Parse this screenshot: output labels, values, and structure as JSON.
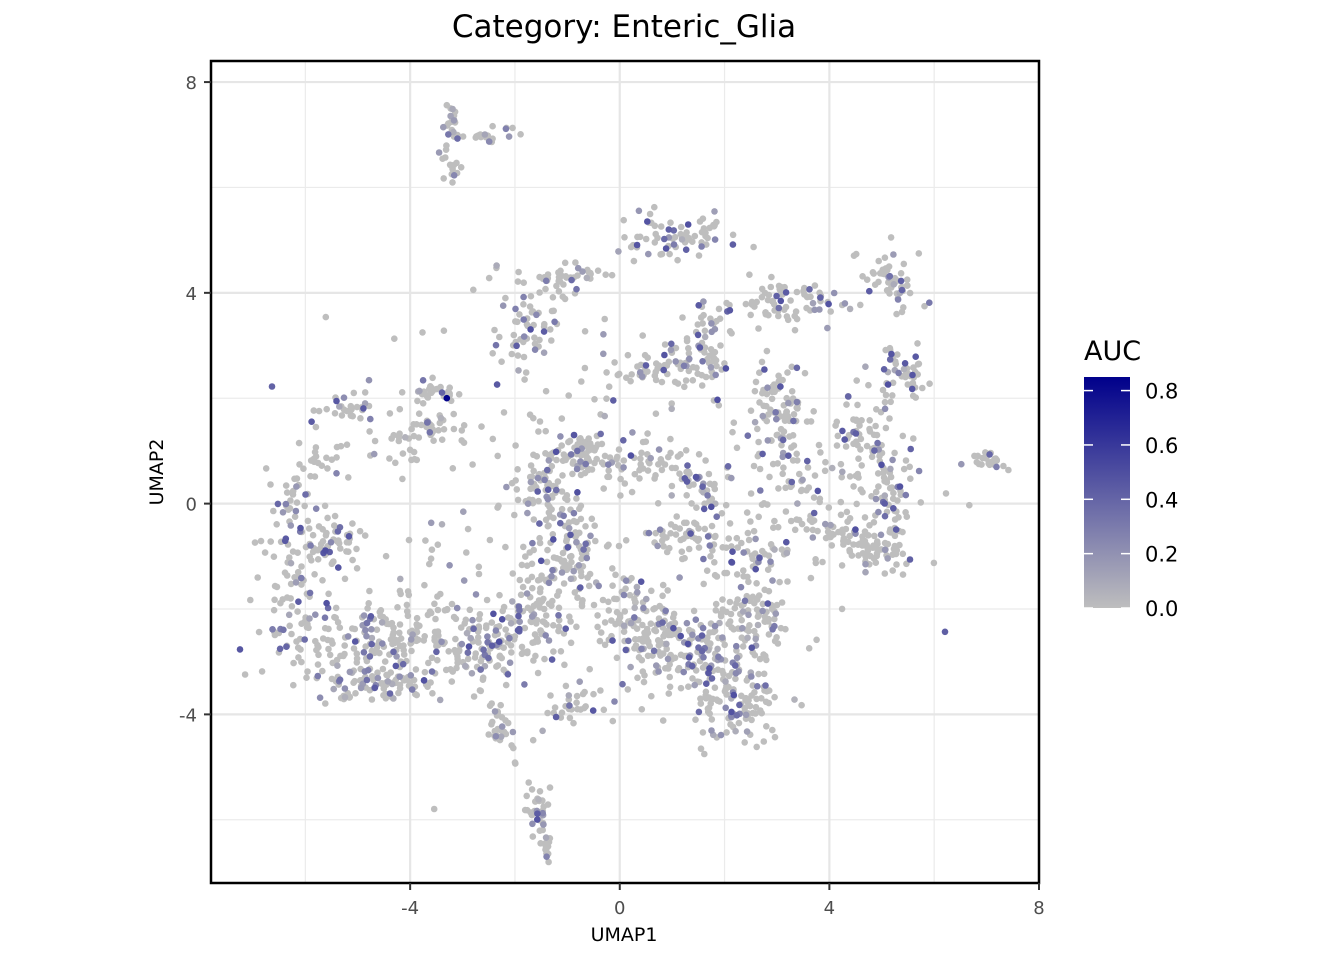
{
  "chart_data": {
    "type": "scatter",
    "title": "Category: Enteric_Glia",
    "xlabel": "UMAP1",
    "ylabel": "UMAP2",
    "xlim": [
      -7.8,
      8
    ],
    "ylim": [
      -7.2,
      8.4
    ],
    "x_ticks": [
      -4,
      0,
      4,
      8
    ],
    "x_tick_labels": [
      "-4",
      "0",
      "4",
      "8"
    ],
    "y_ticks": [
      -4,
      0,
      4,
      8
    ],
    "y_tick_labels": [
      "-4",
      "0",
      "4",
      "8"
    ],
    "grid": true,
    "legend": {
      "title": "AUC",
      "placement": "right",
      "range": [
        0,
        0.85
      ],
      "ticks": [
        0.0,
        0.2,
        0.4,
        0.6,
        0.8
      ],
      "tick_labels": [
        "0.0",
        "0.2",
        "0.4",
        "0.6",
        "0.8"
      ],
      "color_low": "#bebebe",
      "color_high": "#00008b"
    },
    "points_note_excluded": true,
    "clusters": [
      {
        "cx": -3.2,
        "cy": 7.3,
        "rx": 0.15,
        "ry": 0.35,
        "n": 18
      },
      {
        "cx": -2.5,
        "cy": 7.0,
        "rx": 0.5,
        "ry": 0.15,
        "n": 20
      },
      {
        "cx": -3.2,
        "cy": 6.4,
        "rx": 0.2,
        "ry": 0.35,
        "n": 16
      },
      {
        "cx": 1.0,
        "cy": 5.1,
        "rx": 0.9,
        "ry": 0.35,
        "n": 70
      },
      {
        "cx": -1.1,
        "cy": 4.3,
        "rx": 0.6,
        "ry": 0.25,
        "n": 45
      },
      {
        "cx": -1.7,
        "cy": 3.3,
        "rx": 0.5,
        "ry": 0.6,
        "n": 55
      },
      {
        "cx": 0.7,
        "cy": 2.6,
        "rx": 1.0,
        "ry": 0.3,
        "n": 65
      },
      {
        "cx": 1.6,
        "cy": 3.0,
        "rx": 0.35,
        "ry": 0.6,
        "n": 40
      },
      {
        "cx": 3.3,
        "cy": 3.8,
        "rx": 1.1,
        "ry": 0.35,
        "n": 70
      },
      {
        "cx": 5.1,
        "cy": 4.2,
        "rx": 0.5,
        "ry": 0.45,
        "n": 55
      },
      {
        "cx": 5.4,
        "cy": 2.5,
        "rx": 0.4,
        "ry": 0.6,
        "n": 50
      },
      {
        "cx": 3.0,
        "cy": 1.7,
        "rx": 0.5,
        "ry": 0.7,
        "n": 80
      },
      {
        "cx": 4.6,
        "cy": 1.2,
        "rx": 0.5,
        "ry": 0.8,
        "n": 60
      },
      {
        "cx": 5.2,
        "cy": 0.0,
        "rx": 0.4,
        "ry": 1.0,
        "n": 75
      },
      {
        "cx": 4.2,
        "cy": -0.6,
        "rx": 0.5,
        "ry": 0.4,
        "n": 45
      },
      {
        "cx": 4.8,
        "cy": -0.9,
        "rx": 0.4,
        "ry": 0.3,
        "n": 40
      },
      {
        "cx": 3.3,
        "cy": 0.3,
        "rx": 0.7,
        "ry": 0.9,
        "n": 55
      },
      {
        "cx": -3.5,
        "cy": 2.1,
        "rx": 0.5,
        "ry": 0.2,
        "n": 30
      },
      {
        "cx": -3.5,
        "cy": 1.4,
        "rx": 0.5,
        "ry": 0.25,
        "n": 25
      },
      {
        "cx": -5.2,
        "cy": 1.8,
        "rx": 0.5,
        "ry": 0.2,
        "n": 30
      },
      {
        "cx": -4.2,
        "cy": 1.2,
        "rx": 0.6,
        "ry": 0.5,
        "n": 25
      },
      {
        "cx": -5.7,
        "cy": 0.8,
        "rx": 0.4,
        "ry": 0.4,
        "n": 18
      },
      {
        "cx": -6.3,
        "cy": 0.1,
        "rx": 0.35,
        "ry": 0.6,
        "n": 30
      },
      {
        "cx": -6.3,
        "cy": -1.5,
        "rx": 0.4,
        "ry": 1.1,
        "n": 60
      },
      {
        "cx": -5.4,
        "cy": -0.8,
        "rx": 0.5,
        "ry": 0.6,
        "n": 55
      },
      {
        "cx": -4.7,
        "cy": -2.6,
        "rx": 1.6,
        "ry": 0.7,
        "n": 200
      },
      {
        "cx": -4.6,
        "cy": -3.4,
        "rx": 1.0,
        "ry": 0.3,
        "n": 80
      },
      {
        "cx": -2.6,
        "cy": -2.6,
        "rx": 1.0,
        "ry": 0.6,
        "n": 120
      },
      {
        "cx": -1.5,
        "cy": -2.0,
        "rx": 0.7,
        "ry": 0.9,
        "n": 110
      },
      {
        "cx": -0.8,
        "cy": 1.0,
        "rx": 0.6,
        "ry": 0.35,
        "n": 70
      },
      {
        "cx": -1.5,
        "cy": 0.3,
        "rx": 0.4,
        "ry": 0.5,
        "n": 55
      },
      {
        "cx": -0.9,
        "cy": -0.8,
        "rx": 0.4,
        "ry": 0.8,
        "n": 70
      },
      {
        "cx": 0.3,
        "cy": -2.2,
        "rx": 0.7,
        "ry": 0.6,
        "n": 90
      },
      {
        "cx": 1.3,
        "cy": -2.8,
        "rx": 1.0,
        "ry": 0.6,
        "n": 150
      },
      {
        "cx": 2.2,
        "cy": -3.8,
        "rx": 0.8,
        "ry": 0.6,
        "n": 110
      },
      {
        "cx": 2.5,
        "cy": -2.2,
        "rx": 0.6,
        "ry": 0.6,
        "n": 80
      },
      {
        "cx": 1.3,
        "cy": -0.6,
        "rx": 0.8,
        "ry": 0.3,
        "n": 50
      },
      {
        "cx": 2.5,
        "cy": -1.0,
        "rx": 0.6,
        "ry": 0.4,
        "n": 40
      },
      {
        "cx": 0.5,
        "cy": 0.8,
        "rx": 1.0,
        "ry": 0.3,
        "n": 40
      },
      {
        "cx": 1.5,
        "cy": 0.3,
        "rx": 0.6,
        "ry": 0.5,
        "n": 35
      },
      {
        "cx": -0.9,
        "cy": -3.8,
        "rx": 0.5,
        "ry": 0.3,
        "n": 30
      },
      {
        "cx": -2.3,
        "cy": -4.3,
        "rx": 0.2,
        "ry": 0.35,
        "n": 30
      },
      {
        "cx": -1.6,
        "cy": -5.9,
        "rx": 0.18,
        "ry": 0.4,
        "n": 35
      },
      {
        "cx": -1.4,
        "cy": -6.5,
        "rx": 0.15,
        "ry": 0.2,
        "n": 12
      },
      {
        "cx": 7.0,
        "cy": 0.8,
        "rx": 0.3,
        "ry": 0.12,
        "n": 25
      },
      {
        "cx": 0.0,
        "cy": 0.0,
        "rx": 4.5,
        "ry": 3.5,
        "n": 260
      }
    ]
  }
}
